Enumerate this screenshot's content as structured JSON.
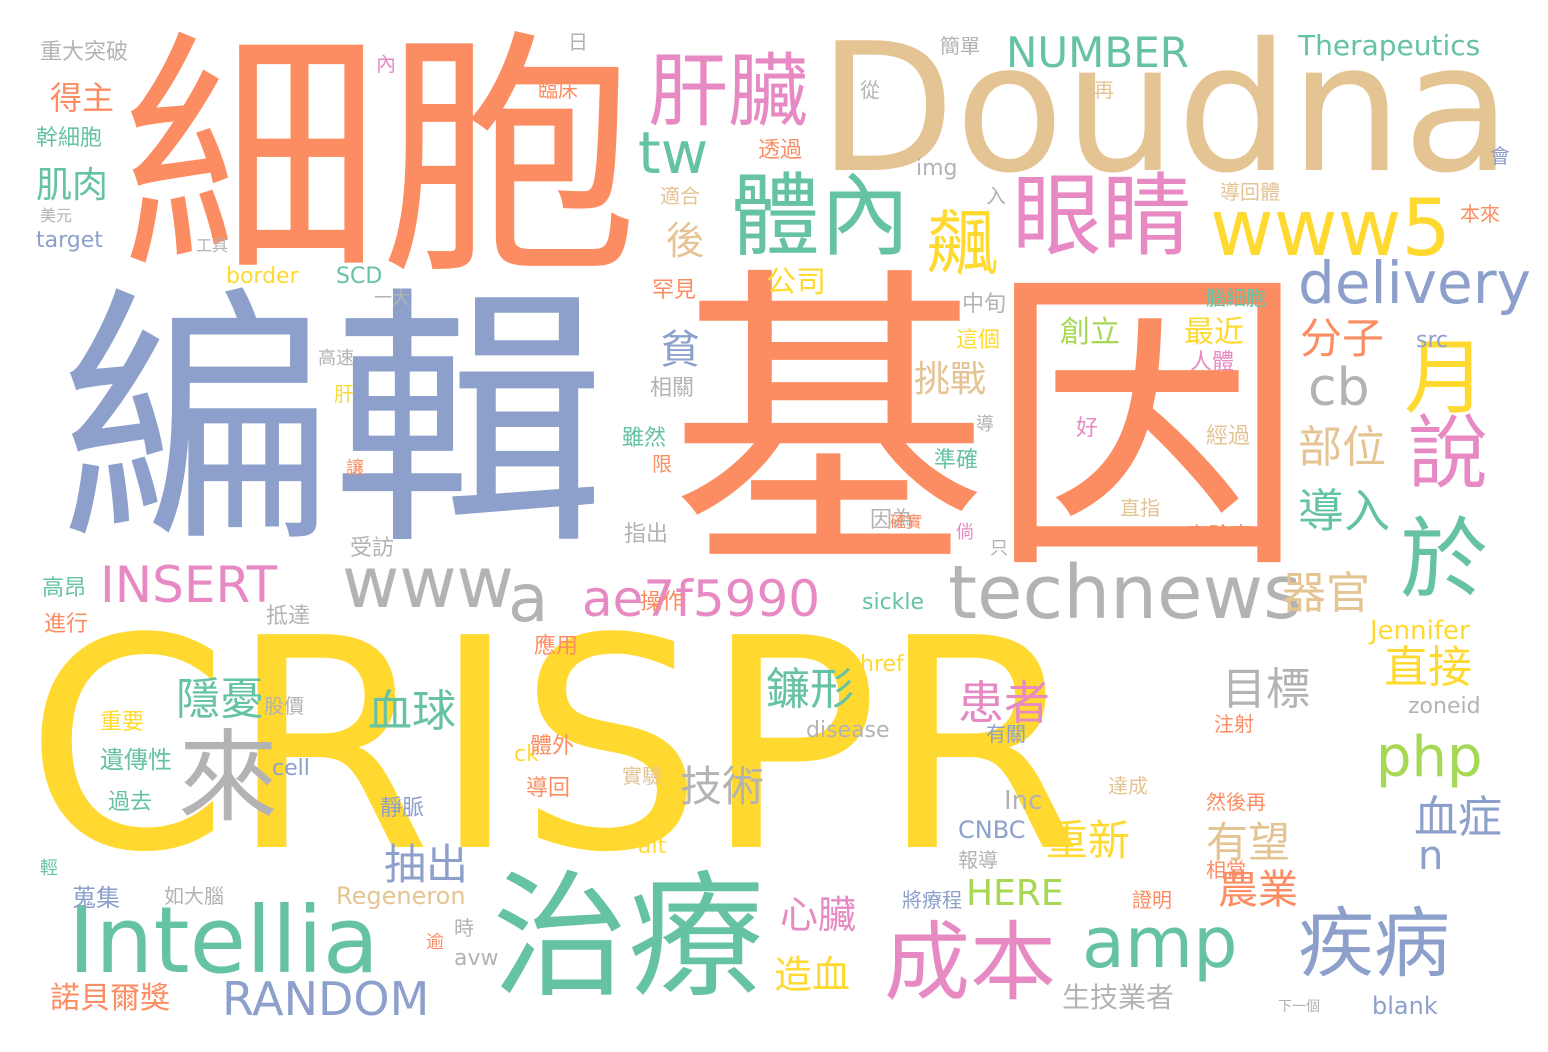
{
  "palette": {
    "orange": "#fc8d62",
    "blue": "#8da0cb",
    "green": "#66c2a5",
    "yellow": "#ffd92f",
    "pink": "#e78ac3",
    "tan": "#e5c494",
    "gray": "#b3b3b3",
    "lime": "#a6d854"
  },
  "words": [
    {
      "text": "CRISPR",
      "color": "yellow"
    },
    {
      "text": "基因",
      "color": "orange"
    },
    {
      "text": "編輯",
      "color": "blue"
    },
    {
      "text": "細胞",
      "color": "orange"
    },
    {
      "text": "Doudna",
      "color": "tan"
    },
    {
      "text": "治療",
      "color": "green"
    },
    {
      "text": "Intellia",
      "color": "green"
    },
    {
      "text": "體內",
      "color": "green"
    },
    {
      "text": "眼睛",
      "color": "pink"
    },
    {
      "text": "肝臟",
      "color": "pink"
    },
    {
      "text": "www5",
      "color": "yellow"
    },
    {
      "text": "technews",
      "color": "gray"
    },
    {
      "text": "www",
      "color": "gray"
    },
    {
      "text": "amp",
      "color": "green"
    },
    {
      "text": "疾病",
      "color": "blue"
    },
    {
      "text": "成本",
      "color": "pink"
    },
    {
      "text": "ae7f5990",
      "color": "pink"
    },
    {
      "text": "delivery",
      "color": "blue"
    },
    {
      "text": "來",
      "color": "gray"
    },
    {
      "text": "於",
      "color": "green"
    },
    {
      "text": "說",
      "color": "pink"
    },
    {
      "text": "月",
      "color": "yellow"
    },
    {
      "text": "tw",
      "color": "green"
    },
    {
      "text": "a",
      "color": "gray"
    },
    {
      "text": "cb",
      "color": "gray"
    },
    {
      "text": "飆",
      "color": "yellow"
    },
    {
      "text": "INSERT",
      "color": "pink"
    },
    {
      "text": "RANDOM",
      "color": "blue"
    },
    {
      "text": "NUMBER",
      "color": "green"
    },
    {
      "text": "php",
      "color": "lime"
    },
    {
      "text": "Therapeutics",
      "color": "green"
    },
    {
      "text": "分子",
      "color": "orange"
    },
    {
      "text": "部位",
      "color": "tan"
    },
    {
      "text": "導入",
      "color": "green"
    },
    {
      "text": "器官",
      "color": "tan"
    },
    {
      "text": "直接",
      "color": "yellow"
    },
    {
      "text": "目標",
      "color": "gray"
    },
    {
      "text": "患者",
      "color": "pink"
    },
    {
      "text": "鐮形",
      "color": "green"
    },
    {
      "text": "隱憂",
      "color": "green"
    },
    {
      "text": "血球",
      "color": "green"
    },
    {
      "text": "技術",
      "color": "gray"
    },
    {
      "text": "血症",
      "color": "blue"
    },
    {
      "text": "重新",
      "color": "yellow"
    },
    {
      "text": "有望",
      "color": "tan"
    },
    {
      "text": "抽出",
      "color": "blue"
    },
    {
      "text": "農業",
      "color": "orange"
    },
    {
      "text": "HERE",
      "color": "lime"
    },
    {
      "text": "心臟",
      "color": "pink"
    },
    {
      "text": "造血",
      "color": "yellow"
    },
    {
      "text": "挑戰",
      "color": "tan"
    },
    {
      "text": "後",
      "color": "tan"
    },
    {
      "text": "貧",
      "color": "blue"
    },
    {
      "text": "n",
      "color": "blue"
    },
    {
      "text": "肌肉",
      "color": "green"
    },
    {
      "text": "得主",
      "color": "orange"
    },
    {
      "text": "幹細胞",
      "color": "green"
    },
    {
      "text": "重大突破",
      "color": "gray"
    },
    {
      "text": "target",
      "color": "blue"
    },
    {
      "text": "border",
      "color": "yellow"
    },
    {
      "text": "SCD",
      "color": "green"
    },
    {
      "text": "公司",
      "color": "yellow"
    },
    {
      "text": "最近",
      "color": "yellow"
    },
    {
      "text": "創立",
      "color": "lime"
    },
    {
      "text": "src",
      "color": "blue"
    },
    {
      "text": "img",
      "color": "gray"
    },
    {
      "text": "Jennifer",
      "color": "yellow"
    },
    {
      "text": "zoneid",
      "color": "gray"
    },
    {
      "text": "sickle",
      "color": "green"
    },
    {
      "text": "disease",
      "color": "gray"
    },
    {
      "text": "href",
      "color": "yellow"
    },
    {
      "text": "Inc",
      "color": "gray"
    },
    {
      "text": "CNBC",
      "color": "blue"
    },
    {
      "text": "Regeneron",
      "color": "tan"
    },
    {
      "text": "avw",
      "color": "gray"
    },
    {
      "text": "blank",
      "color": "blue"
    },
    {
      "text": "alt",
      "color": "yellow"
    },
    {
      "text": "ck",
      "color": "yellow"
    },
    {
      "text": "cell",
      "color": "blue"
    },
    {
      "text": "諾貝爾獎",
      "color": "orange"
    },
    {
      "text": "生技業者",
      "color": "gray"
    },
    {
      "text": "遺傳性",
      "color": "green"
    },
    {
      "text": "高昂",
      "color": "green"
    },
    {
      "text": "進行",
      "color": "orange"
    },
    {
      "text": "抵達",
      "color": "gray"
    },
    {
      "text": "股價",
      "color": "gray"
    },
    {
      "text": "重要",
      "color": "yellow"
    },
    {
      "text": "過去",
      "color": "green"
    },
    {
      "text": "蒐集",
      "color": "blue"
    },
    {
      "text": "如大腦",
      "color": "gray"
    },
    {
      "text": "靜脈",
      "color": "blue"
    },
    {
      "text": "實驗",
      "color": "tan"
    },
    {
      "text": "導回",
      "color": "orange"
    },
    {
      "text": "體外",
      "color": "orange"
    },
    {
      "text": "應用",
      "color": "orange"
    },
    {
      "text": "操作",
      "color": "orange"
    },
    {
      "text": "相關",
      "color": "gray"
    },
    {
      "text": "雖然",
      "color": "green"
    },
    {
      "text": "限",
      "color": "orange"
    },
    {
      "text": "指出",
      "color": "gray"
    },
    {
      "text": "受訪",
      "color": "gray"
    },
    {
      "text": "因為",
      "color": "gray"
    },
    {
      "text": "準確",
      "color": "green"
    },
    {
      "text": "確實",
      "color": "orange"
    },
    {
      "text": "直指",
      "color": "tan"
    },
    {
      "text": "實驗室",
      "color": "orange"
    },
    {
      "text": "經過",
      "color": "tan"
    },
    {
      "text": "好",
      "color": "pink"
    },
    {
      "text": "人體",
      "color": "pink"
    },
    {
      "text": "中旬",
      "color": "gray"
    },
    {
      "text": "這個",
      "color": "yellow"
    },
    {
      "text": "一大",
      "color": "gray"
    },
    {
      "text": "高速",
      "color": "gray"
    },
    {
      "text": "肝",
      "color": "yellow"
    },
    {
      "text": "罕見",
      "color": "orange"
    },
    {
      "text": "透過",
      "color": "orange"
    },
    {
      "text": "適合",
      "color": "tan"
    },
    {
      "text": "腦細胞",
      "color": "green"
    },
    {
      "text": "導回體",
      "color": "tan"
    },
    {
      "text": "本來",
      "color": "orange"
    },
    {
      "text": "簡單",
      "color": "gray"
    },
    {
      "text": "從",
      "color": "gray"
    },
    {
      "text": "再",
      "color": "tan"
    },
    {
      "text": "會",
      "color": "blue"
    },
    {
      "text": "日",
      "color": "gray"
    },
    {
      "text": "內",
      "color": "pink"
    },
    {
      "text": "入",
      "color": "gray"
    },
    {
      "text": "臨床",
      "color": "orange"
    },
    {
      "text": "工具",
      "color": "gray"
    },
    {
      "text": "美元",
      "color": "gray"
    },
    {
      "text": "讓",
      "color": "orange"
    },
    {
      "text": "有關",
      "color": "blue"
    },
    {
      "text": "注射",
      "color": "orange"
    },
    {
      "text": "達成",
      "color": "tan"
    },
    {
      "text": "然後再",
      "color": "orange"
    },
    {
      "text": "報導",
      "color": "gray"
    },
    {
      "text": "相當",
      "color": "orange"
    },
    {
      "text": "證明",
      "color": "orange"
    },
    {
      "text": "將療程",
      "color": "blue"
    },
    {
      "text": "時",
      "color": "gray"
    },
    {
      "text": "逾",
      "color": "orange"
    },
    {
      "text": "只",
      "color": "gray"
    },
    {
      "text": "導",
      "color": "gray"
    },
    {
      "text": "倘",
      "color": "pink"
    },
    {
      "text": "下一個",
      "color": "gray"
    },
    {
      "text": "輕",
      "color": "green"
    }
  ]
}
